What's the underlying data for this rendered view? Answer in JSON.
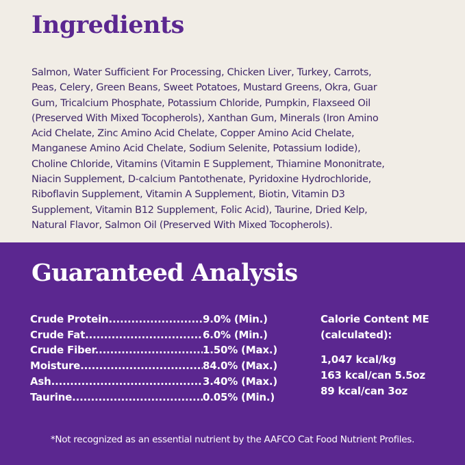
{
  "colors": {
    "cream": "#f1ede6",
    "purple": "#5b2790",
    "text": "#3f2868"
  },
  "ingredients": {
    "title": "Ingredients",
    "lines": [
      "Salmon, Water Sufficient For Processing, Chicken Liver, Turkey, Carrots,",
      "Peas, Celery, Green Beans, Sweet Potatoes, Mustard Greens, Okra, Guar",
      "Gum, Tricalcium Phosphate, Potassium Chloride, Pumpkin, Flaxseed Oil",
      "(Preserved With Mixed Tocopherols), Xanthan Gum, Minerals (Iron Amino",
      "Acid Chelate, Zinc Amino Acid Chelate, Copper Amino Acid Chelate,",
      "Manganese Amino Acid Chelate, Sodium Selenite, Potassium Iodide),",
      "Choline Chloride, Vitamins (Vitamin E Supplement, Thiamine Mononitrate,",
      "Niacin Supplement, D-calcium Pantothenate, Pyridoxine Hydrochloride,",
      "Riboflavin Supplement, Vitamin A Supplement, Biotin, Vitamin D3",
      "Supplement, Vitamin B12 Supplement, Folic Acid), Taurine, Dried Kelp,",
      "Natural Flavor, Salmon Oil (Preserved With Mixed Tocopherols)."
    ]
  },
  "analysis": {
    "title": "Guaranteed Analysis",
    "rows": [
      {
        "label": "Crude Protein..........................",
        "value": "9.0% (Min.)"
      },
      {
        "label": "Crude Fat................................",
        "value": "6.0% (Min.)"
      },
      {
        "label": "Crude Fiber..............................",
        "value": "1.50% (Max.)"
      },
      {
        "label": "Moisture.................................",
        "value": "84.0% (Max.)"
      },
      {
        "label": "Ash..........................................",
        "value": "3.40% (Max.)"
      },
      {
        "label": "Taurine...................................",
        "value": "0.05% (Min.)"
      }
    ],
    "calorie": {
      "heading1": "Calorie Content ME",
      "heading2": "(calculated):",
      "values": [
        "1,047 kcal/kg",
        "163 kcal/can 5.5oz",
        "89 kcal/can 3oz"
      ]
    },
    "footnote": "*Not recognized as an essential nutrient by the AAFCO Cat Food Nutrient Profiles."
  }
}
